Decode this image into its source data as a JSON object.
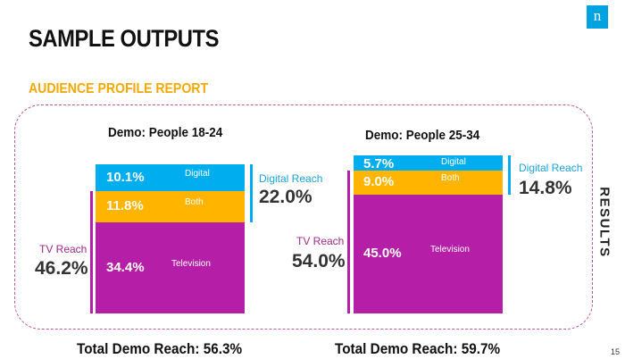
{
  "header": {
    "title": "SAMPLE OUTPUTS",
    "subtitle": "AUDIENCE PROFILE REPORT",
    "logo": "n"
  },
  "side_label": "RESULTS",
  "page_number": "15",
  "colors": {
    "digital": "#00aeef",
    "both": "#ffb400",
    "television": "#b51fa8",
    "digital_text": "#1aa3d9",
    "tv_text": "#a12890"
  },
  "chart_data": [
    {
      "type": "bar",
      "title": "Demo: People 18-24",
      "categories": [
        "Digital",
        "Both",
        "Television"
      ],
      "values": [
        10.1,
        11.8,
        34.4
      ],
      "labels": [
        "10.1%",
        "11.8%",
        "34.4%"
      ],
      "digital_reach": {
        "label": "Digital Reach",
        "value": "22.0%"
      },
      "tv_reach": {
        "label": "TV Reach",
        "value": "46.2%"
      },
      "total": "Total Demo Reach: 56.3%"
    },
    {
      "type": "bar",
      "title": "Demo: People 25-34",
      "categories": [
        "Digital",
        "Both",
        "Television"
      ],
      "values": [
        5.7,
        9.0,
        45.0
      ],
      "labels": [
        "5.7%",
        "9.0%",
        "45.0%"
      ],
      "digital_reach": {
        "label": "Digital Reach",
        "value": "14.8%"
      },
      "tv_reach": {
        "label": "TV Reach",
        "value": "54.0%"
      },
      "total": "Total Demo Reach: 59.7%"
    }
  ]
}
